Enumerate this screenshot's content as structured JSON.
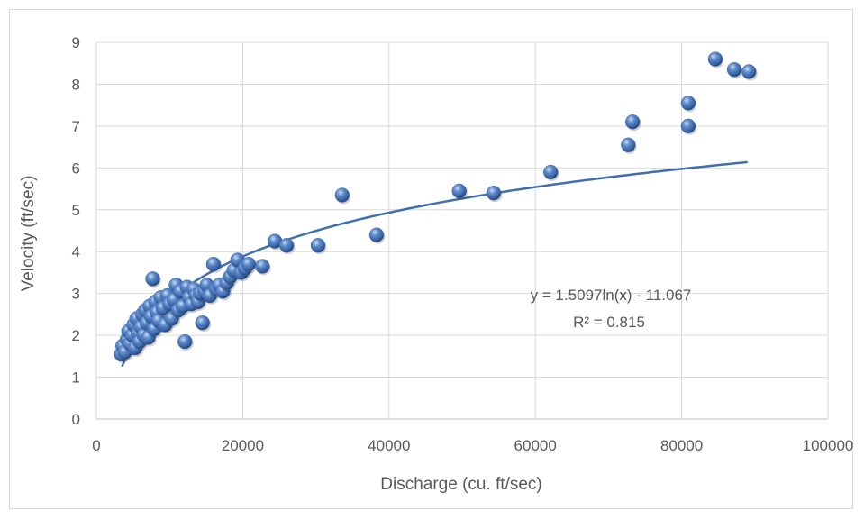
{
  "chart_data": {
    "type": "scatter",
    "title": "",
    "xlabel": "Discharge (cu. ft/sec)",
    "ylabel": "Velocity (ft/sec)",
    "xlim": [
      0,
      100000
    ],
    "ylim": [
      0,
      9
    ],
    "x_ticks": [
      "0",
      "20000",
      "40000",
      "60000",
      "80000",
      "100000"
    ],
    "y_ticks": [
      "0",
      "1",
      "2",
      "3",
      "4",
      "5",
      "6",
      "7",
      "8",
      "9"
    ],
    "grid": true,
    "legend": "none",
    "marker_color": "#4a73b4",
    "trendline_color": "#3f6fad",
    "trendline": {
      "type": "logarithmic",
      "a": 1.5097,
      "b": -11.067,
      "x_range": [
        3500,
        89000
      ],
      "equation": "y = 1.5097ln(x) - 11.067",
      "r_squared": "R² = 0.815"
    },
    "points": [
      [
        3400,
        1.55
      ],
      [
        3600,
        1.75
      ],
      [
        3900,
        1.6
      ],
      [
        4200,
        1.9
      ],
      [
        4400,
        2.1
      ],
      [
        4600,
        1.8
      ],
      [
        4900,
        2.0
      ],
      [
        5100,
        2.25
      ],
      [
        5300,
        1.7
      ],
      [
        5500,
        2.4
      ],
      [
        5700,
        2.05
      ],
      [
        5900,
        1.85
      ],
      [
        6100,
        2.2
      ],
      [
        6300,
        2.5
      ],
      [
        6500,
        2.0
      ],
      [
        6700,
        2.6
      ],
      [
        6900,
        2.3
      ],
      [
        7100,
        1.95
      ],
      [
        7300,
        2.7
      ],
      [
        7500,
        2.45
      ],
      [
        7700,
        3.35
      ],
      [
        7900,
        2.15
      ],
      [
        8100,
        2.8
      ],
      [
        8300,
        2.55
      ],
      [
        8500,
        2.35
      ],
      [
        8800,
        2.9
      ],
      [
        9100,
        2.65
      ],
      [
        9400,
        2.25
      ],
      [
        9700,
        2.95
      ],
      [
        10000,
        2.75
      ],
      [
        10300,
        2.4
      ],
      [
        10600,
        2.85
      ],
      [
        10900,
        3.2
      ],
      [
        11200,
        2.6
      ],
      [
        11500,
        3.05
      ],
      [
        11800,
        2.7
      ],
      [
        12100,
        1.85
      ],
      [
        12400,
        3.15
      ],
      [
        12700,
        2.9
      ],
      [
        13000,
        2.75
      ],
      [
        13300,
        3.1
      ],
      [
        13600,
        2.95
      ],
      [
        13900,
        2.8
      ],
      [
        14200,
        3.0
      ],
      [
        14500,
        2.3
      ],
      [
        14800,
        3.05
      ],
      [
        15100,
        3.2
      ],
      [
        15500,
        2.95
      ],
      [
        16000,
        3.7
      ],
      [
        16400,
        3.1
      ],
      [
        16800,
        3.2
      ],
      [
        17300,
        3.05
      ],
      [
        17800,
        3.25
      ],
      [
        18300,
        3.4
      ],
      [
        18800,
        3.55
      ],
      [
        19300,
        3.8
      ],
      [
        19800,
        3.5
      ],
      [
        20300,
        3.6
      ],
      [
        20800,
        3.7
      ],
      [
        22700,
        3.65
      ],
      [
        24400,
        4.25
      ],
      [
        26000,
        4.15
      ],
      [
        30300,
        4.15
      ],
      [
        33600,
        5.35
      ],
      [
        38300,
        4.4
      ],
      [
        49600,
        5.45
      ],
      [
        54300,
        5.4
      ],
      [
        62100,
        5.9
      ],
      [
        72700,
        6.55
      ],
      [
        73300,
        7.1
      ],
      [
        80900,
        7.55
      ],
      [
        80900,
        7.0
      ],
      [
        84600,
        8.6
      ],
      [
        87200,
        8.35
      ],
      [
        89200,
        8.3
      ]
    ]
  }
}
